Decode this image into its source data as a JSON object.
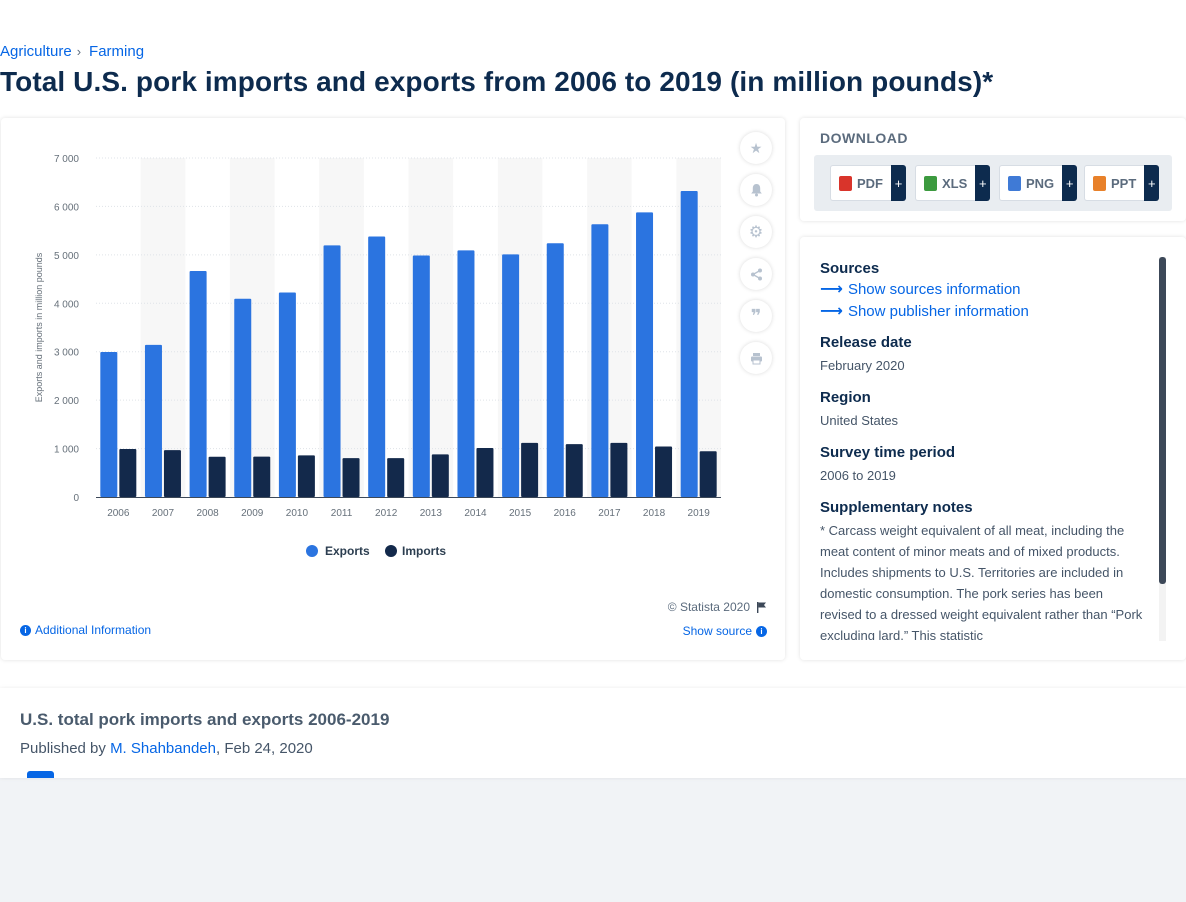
{
  "breadcrumb": {
    "items": [
      "Agriculture",
      "Farming"
    ],
    "separator": "›"
  },
  "title": "Total U.S. pork imports and exports from 2006 to 2019 (in million pounds)*",
  "chart_data": {
    "type": "bar",
    "categories": [
      "2006",
      "2007",
      "2008",
      "2009",
      "2010",
      "2011",
      "2012",
      "2013",
      "2014",
      "2015",
      "2016",
      "2017",
      "2018",
      "2019"
    ],
    "series": [
      {
        "name": "Exports",
        "color": "#2b74e0",
        "values": [
          2995,
          3141,
          4667,
          4094,
          4224,
          5196,
          5380,
          4986,
          5092,
          5010,
          5239,
          5633,
          5877,
          6318
        ]
      },
      {
        "name": "Imports",
        "color": "#13294b",
        "values": [
          990,
          968,
          832,
          834,
          859,
          803,
          802,
          880,
          1011,
          1118,
          1091,
          1118,
          1042,
          945
        ]
      }
    ],
    "ylabel": "Exports and imports in million pounds",
    "xlabel": "",
    "ylim": [
      0,
      7000
    ],
    "yticks": [
      "0",
      "1 000",
      "2 000",
      "3 000",
      "4 000",
      "5 000",
      "6 000",
      "7 000"
    ],
    "ytick_values": [
      0,
      1000,
      2000,
      3000,
      4000,
      5000,
      6000,
      7000
    ],
    "legend": [
      "Exports",
      "Imports"
    ],
    "legend_position": "bottom",
    "grid": true
  },
  "chart_card": {
    "copyright": "© Statista 2020",
    "additional_info": "Additional Information",
    "show_source": "Show source",
    "side_icons": [
      "star-icon",
      "bell-icon",
      "gear-icon",
      "share-icon",
      "quote-icon",
      "print-icon"
    ]
  },
  "download": {
    "title": "DOWNLOAD",
    "buttons": [
      {
        "label": "PDF",
        "icon": "pdf-file-icon",
        "color": "#d9342b"
      },
      {
        "label": "XLS",
        "icon": "xls-file-icon",
        "color": "#3c9a3f"
      },
      {
        "label": "PNG",
        "icon": "png-file-icon",
        "color": "#3f7ad6"
      },
      {
        "label": "PPT",
        "icon": "ppt-file-icon",
        "color": "#e8812a"
      }
    ],
    "plus": "+"
  },
  "info": {
    "sources_heading": "Sources",
    "show_sources": "Show sources information",
    "show_publisher": "Show publisher information",
    "release_heading": "Release date",
    "release_value": "February 2020",
    "region_heading": "Region",
    "region_value": "United States",
    "survey_heading": "Survey time period",
    "survey_value": "2006 to 2019",
    "notes_heading": "Supplementary notes",
    "notes_value": "* Carcass weight equivalent of all meat, including the meat content of minor meats and of mixed products. Includes shipments to U.S. Territories are included in domestic consumption. The pork series has been revised to a dressed weight equivalent rather than “Pork excluding lard.” This statistic"
  },
  "publication": {
    "title": "U.S. total pork imports and exports 2006-2019",
    "published_by": "Published by",
    "author": "M. Shahbandeh",
    "date": ", Feb 24, 2020"
  }
}
